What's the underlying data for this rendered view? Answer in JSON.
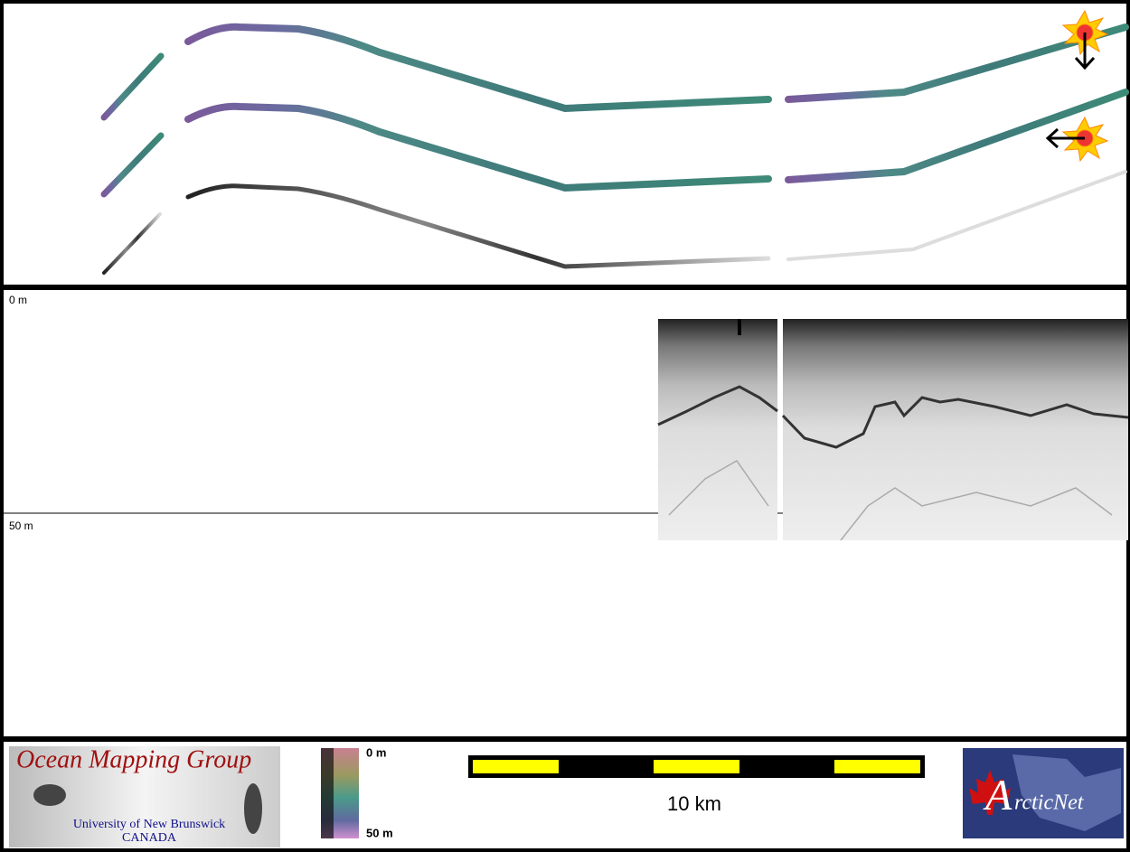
{
  "profile": {
    "top_depth": "0 m",
    "mid_depth": "50 m"
  },
  "footer": {
    "logo": {
      "title": "Ocean Mapping Group",
      "university": "University of New Brunswick",
      "country": "CANADA"
    },
    "colorbar": {
      "top": "0 m",
      "bottom": "50 m"
    },
    "scale": "10 km",
    "partner": {
      "initial": "A",
      "rest": "rcticNet"
    }
  }
}
